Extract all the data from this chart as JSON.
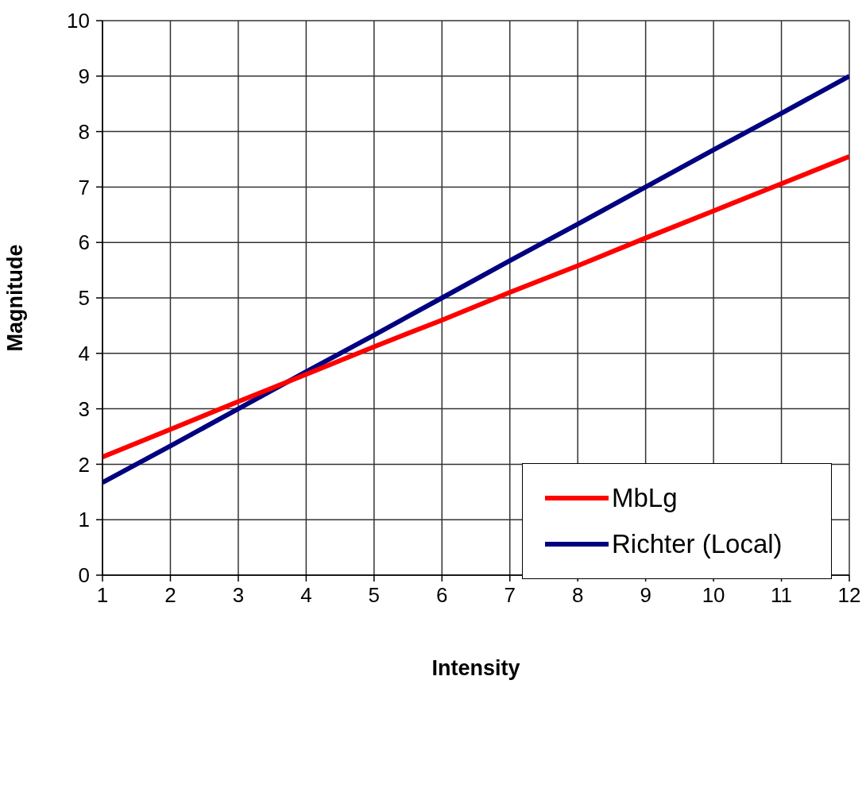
{
  "chart_data": {
    "type": "line",
    "xlabel": "Intensity",
    "ylabel": "Magnitude",
    "x": [
      1,
      2,
      3,
      4,
      5,
      6,
      7,
      8,
      9,
      10,
      11,
      12
    ],
    "series": [
      {
        "name": "Richter (Local)",
        "color": "#000080",
        "values": [
          1.67,
          2.33,
          3.0,
          3.67,
          4.33,
          5.0,
          5.67,
          6.33,
          7.0,
          7.67,
          8.33,
          9.0
        ]
      },
      {
        "name": "MbLg",
        "color": "#ff0000",
        "values": [
          2.13,
          2.63,
          3.13,
          3.62,
          4.12,
          4.6,
          5.1,
          5.58,
          6.08,
          6.57,
          7.06,
          7.55
        ]
      }
    ],
    "xlim": [
      1,
      12
    ],
    "xticks": [
      1,
      2,
      3,
      4,
      5,
      6,
      7,
      8,
      9,
      10,
      11,
      12
    ],
    "ylim": [
      0,
      10
    ],
    "yticks": [
      0,
      1,
      2,
      3,
      4,
      5,
      6,
      7,
      8,
      9,
      10
    ],
    "grid": true,
    "legend": "right",
    "marker": "none",
    "line_style": "solid"
  }
}
